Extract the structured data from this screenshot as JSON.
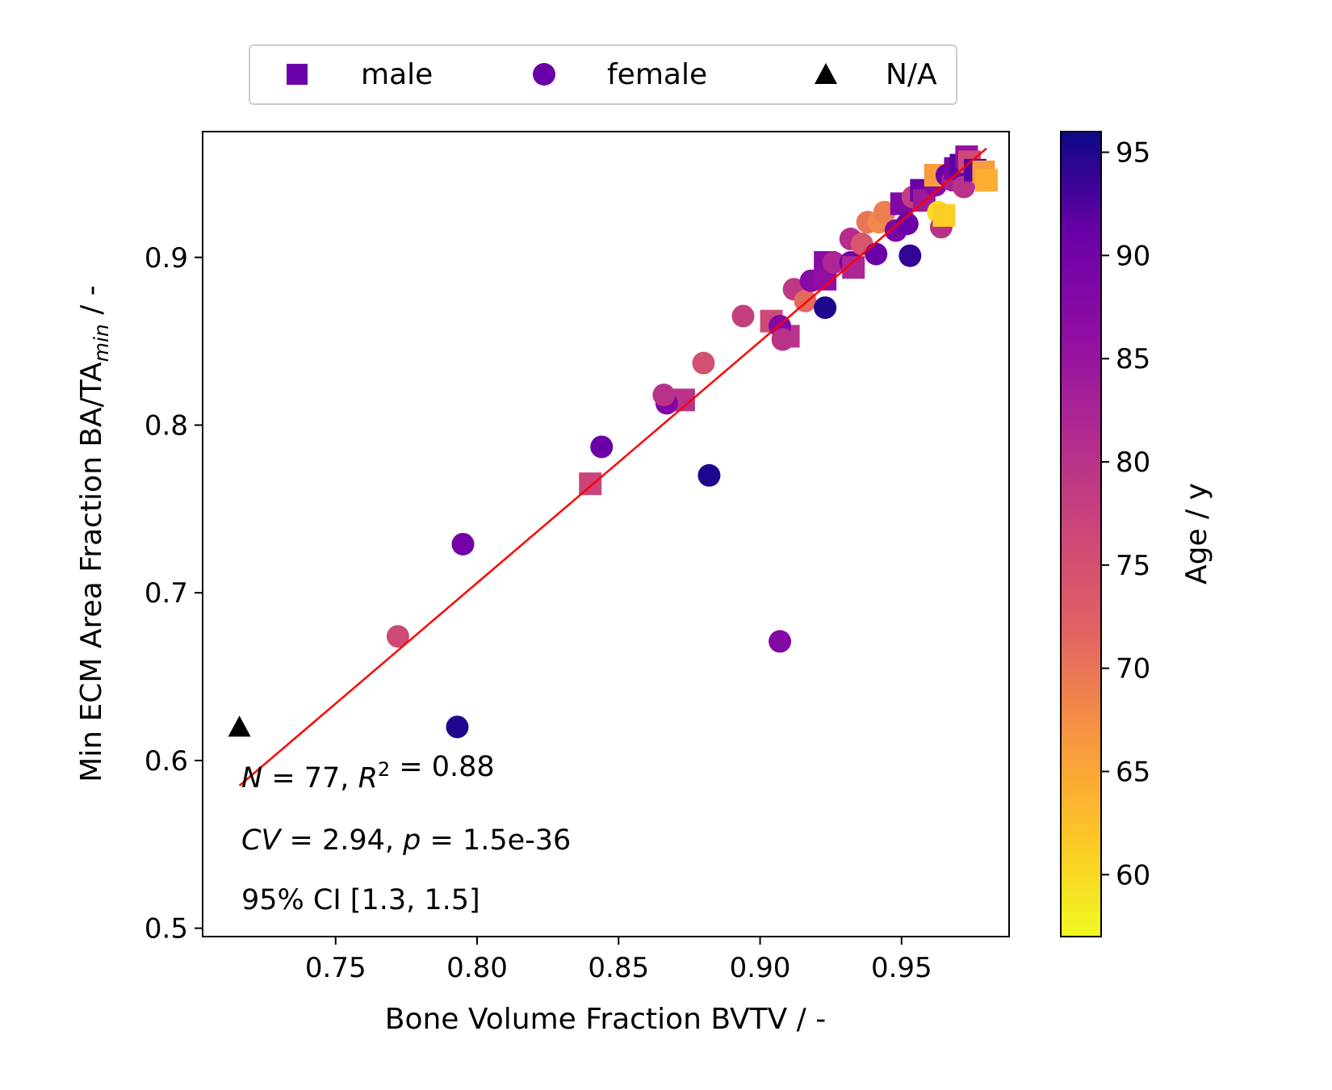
{
  "chart_data": {
    "type": "scatter",
    "xlabel": "Bone Volume Fraction BVTV / -",
    "ylabel_main": "Min ECM Area Fraction BA/TA",
    "ylabel_sub": "min",
    "ylabel_suffix": " / -",
    "xlim": [
      0.703,
      0.988
    ],
    "ylim": [
      0.495,
      0.975
    ],
    "xticks": [
      {
        "value": 0.75,
        "label": "0.75"
      },
      {
        "value": 0.8,
        "label": "0.80"
      },
      {
        "value": 0.85,
        "label": "0.85"
      },
      {
        "value": 0.9,
        "label": "0.90"
      },
      {
        "value": 0.95,
        "label": "0.95"
      }
    ],
    "yticks": [
      {
        "value": 0.5,
        "label": "0.5"
      },
      {
        "value": 0.6,
        "label": "0.6"
      },
      {
        "value": 0.7,
        "label": "0.7"
      },
      {
        "value": 0.8,
        "label": "0.8"
      },
      {
        "value": 0.9,
        "label": "0.9"
      }
    ],
    "legend": {
      "placement": "top-center, outside plot",
      "entries": [
        {
          "label": "male",
          "marker": "square",
          "color": "#6a00a8"
        },
        {
          "label": "female",
          "marker": "circle",
          "color": "#6a00a8"
        },
        {
          "label": "N/A",
          "marker": "triangle",
          "color": "#000000"
        }
      ]
    },
    "colorbar": {
      "label": "Age / y",
      "range": [
        57,
        96
      ],
      "colormap": "plasma",
      "ticks": [
        {
          "value": 60,
          "label": "60"
        },
        {
          "value": 65,
          "label": "65"
        },
        {
          "value": 70,
          "label": "70"
        },
        {
          "value": 75,
          "label": "75"
        },
        {
          "value": 80,
          "label": "80"
        },
        {
          "value": 85,
          "label": "85"
        },
        {
          "value": 90,
          "label": "90"
        },
        {
          "value": 95,
          "label": "95"
        }
      ]
    },
    "fit_line": {
      "color": "#ff0000",
      "x": [
        0.716,
        0.98
      ],
      "y": [
        0.585,
        0.965
      ]
    },
    "annotations": [
      {
        "parts": [
          {
            "t": "N",
            "i": true
          },
          {
            "t": " = 77, "
          },
          {
            "t": "R",
            "i": true
          },
          {
            "t": "2",
            "sup": true
          },
          {
            "t": " = 0.88"
          }
        ]
      },
      {
        "parts": [
          {
            "t": "CV",
            "i": true
          },
          {
            "t": " = 2.94, "
          },
          {
            "t": "p",
            "i": true
          },
          {
            "t": " = 1.5e-36"
          }
        ]
      },
      {
        "parts": [
          {
            "t": "95% CI [1.3,  1.5]"
          }
        ]
      }
    ],
    "points": [
      {
        "x": 0.716,
        "y": 0.62,
        "marker": "triangle",
        "age": null
      },
      {
        "x": 0.793,
        "y": 0.62,
        "marker": "circle",
        "age": 95
      },
      {
        "x": 0.772,
        "y": 0.674,
        "marker": "circle",
        "age": 76
      },
      {
        "x": 0.795,
        "y": 0.729,
        "marker": "circle",
        "age": 90
      },
      {
        "x": 0.907,
        "y": 0.671,
        "marker": "circle",
        "age": 88
      },
      {
        "x": 0.882,
        "y": 0.77,
        "marker": "circle",
        "age": 95
      },
      {
        "x": 0.844,
        "y": 0.787,
        "marker": "circle",
        "age": 91
      },
      {
        "x": 0.84,
        "y": 0.765,
        "marker": "square",
        "age": 77
      },
      {
        "x": 0.873,
        "y": 0.815,
        "marker": "square",
        "age": 80
      },
      {
        "x": 0.867,
        "y": 0.813,
        "marker": "circle",
        "age": 88
      },
      {
        "x": 0.866,
        "y": 0.818,
        "marker": "circle",
        "age": 80
      },
      {
        "x": 0.88,
        "y": 0.837,
        "marker": "circle",
        "age": 75
      },
      {
        "x": 0.894,
        "y": 0.865,
        "marker": "circle",
        "age": 78
      },
      {
        "x": 0.904,
        "y": 0.862,
        "marker": "square",
        "age": 76
      },
      {
        "x": 0.91,
        "y": 0.853,
        "marker": "square",
        "age": 80
      },
      {
        "x": 0.907,
        "y": 0.859,
        "marker": "circle",
        "age": 88
      },
      {
        "x": 0.908,
        "y": 0.851,
        "marker": "circle",
        "age": 80
      },
      {
        "x": 0.912,
        "y": 0.881,
        "marker": "circle",
        "age": 79
      },
      {
        "x": 0.916,
        "y": 0.874,
        "marker": "circle",
        "age": 71
      },
      {
        "x": 0.918,
        "y": 0.886,
        "marker": "circle",
        "age": 87
      },
      {
        "x": 0.923,
        "y": 0.87,
        "marker": "circle",
        "age": 95
      },
      {
        "x": 0.923,
        "y": 0.897,
        "marker": "square",
        "age": 87
      },
      {
        "x": 0.923,
        "y": 0.887,
        "marker": "square",
        "age": 86
      },
      {
        "x": 0.926,
        "y": 0.897,
        "marker": "circle",
        "age": 82
      },
      {
        "x": 0.932,
        "y": 0.897,
        "marker": "circle",
        "age": 90
      },
      {
        "x": 0.933,
        "y": 0.894,
        "marker": "square",
        "age": 82
      },
      {
        "x": 0.932,
        "y": 0.911,
        "marker": "circle",
        "age": 81
      },
      {
        "x": 0.936,
        "y": 0.908,
        "marker": "circle",
        "age": 74
      },
      {
        "x": 0.938,
        "y": 0.921,
        "marker": "circle",
        "age": 70
      },
      {
        "x": 0.941,
        "y": 0.902,
        "marker": "circle",
        "age": 91
      },
      {
        "x": 0.942,
        "y": 0.921,
        "marker": "circle",
        "age": 68
      },
      {
        "x": 0.944,
        "y": 0.927,
        "marker": "circle",
        "age": 69
      },
      {
        "x": 0.948,
        "y": 0.916,
        "marker": "circle",
        "age": 89
      },
      {
        "x": 0.95,
        "y": 0.932,
        "marker": "square",
        "age": 88
      },
      {
        "x": 0.952,
        "y": 0.92,
        "marker": "circle",
        "age": 91
      },
      {
        "x": 0.953,
        "y": 0.901,
        "marker": "circle",
        "age": 94
      },
      {
        "x": 0.954,
        "y": 0.936,
        "marker": "circle",
        "age": 78
      },
      {
        "x": 0.957,
        "y": 0.94,
        "marker": "square",
        "age": 91
      },
      {
        "x": 0.958,
        "y": 0.934,
        "marker": "square",
        "age": 84
      },
      {
        "x": 0.962,
        "y": 0.943,
        "marker": "circle",
        "age": 87
      },
      {
        "x": 0.962,
        "y": 0.949,
        "marker": "square",
        "age": 66
      },
      {
        "x": 0.963,
        "y": 0.927,
        "marker": "circle",
        "age": 60
      },
      {
        "x": 0.964,
        "y": 0.918,
        "marker": "circle",
        "age": 80
      },
      {
        "x": 0.965,
        "y": 0.925,
        "marker": "square",
        "age": 61
      },
      {
        "x": 0.966,
        "y": 0.949,
        "marker": "circle",
        "age": 91
      },
      {
        "x": 0.968,
        "y": 0.946,
        "marker": "circle",
        "age": 83
      },
      {
        "x": 0.969,
        "y": 0.953,
        "marker": "square",
        "age": 89
      },
      {
        "x": 0.971,
        "y": 0.955,
        "marker": "square",
        "age": 92
      },
      {
        "x": 0.972,
        "y": 0.942,
        "marker": "circle",
        "age": 80
      },
      {
        "x": 0.973,
        "y": 0.96,
        "marker": "square",
        "age": 86
      },
      {
        "x": 0.974,
        "y": 0.957,
        "marker": "square",
        "age": 76
      },
      {
        "x": 0.976,
        "y": 0.952,
        "marker": "square",
        "age": 92
      },
      {
        "x": 0.979,
        "y": 0.951,
        "marker": "square",
        "age": 66
      },
      {
        "x": 0.98,
        "y": 0.946,
        "marker": "square",
        "age": 64
      }
    ]
  }
}
